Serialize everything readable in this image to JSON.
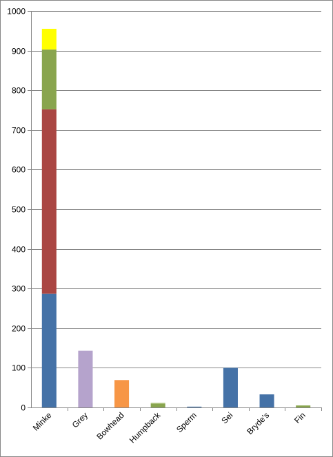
{
  "chart_data": {
    "type": "bar",
    "stacked": true,
    "categories": [
      "Minke",
      "Grey",
      "Bowhead",
      "Humpback",
      "Sperm",
      "Sei",
      "Bryde's",
      "Fin"
    ],
    "series": [
      {
        "color": "#4572A7",
        "values": [
          287,
          0,
          0,
          0,
          2,
          100,
          33,
          0
        ]
      },
      {
        "color": "#AA4643",
        "values": [
          465,
          0,
          0,
          0,
          0,
          0,
          0,
          0
        ]
      },
      {
        "color": "#89A54E",
        "values": [
          151,
          0,
          0,
          10,
          0,
          0,
          0,
          5
        ]
      },
      {
        "color": "#FFFF00",
        "values": [
          52,
          0,
          0,
          0,
          0,
          0,
          0,
          0
        ]
      },
      {
        "color": "#B5A3CC",
        "values": [
          0,
          143,
          0,
          0,
          0,
          0,
          0,
          0
        ]
      },
      {
        "color": "#F79646",
        "values": [
          0,
          0,
          69,
          0,
          0,
          0,
          0,
          0
        ]
      },
      {
        "color": "#C3D69B",
        "values": [
          0,
          0,
          0,
          2,
          0,
          0,
          0,
          0
        ]
      }
    ],
    "y_ticks": [
      "0",
      "100",
      "200",
      "300",
      "400",
      "500",
      "600",
      "700",
      "800",
      "900",
      "1000"
    ],
    "ylim": [
      0,
      1000
    ],
    "grid": true,
    "legend": "none",
    "title": "",
    "xlabel": "",
    "ylabel": ""
  }
}
